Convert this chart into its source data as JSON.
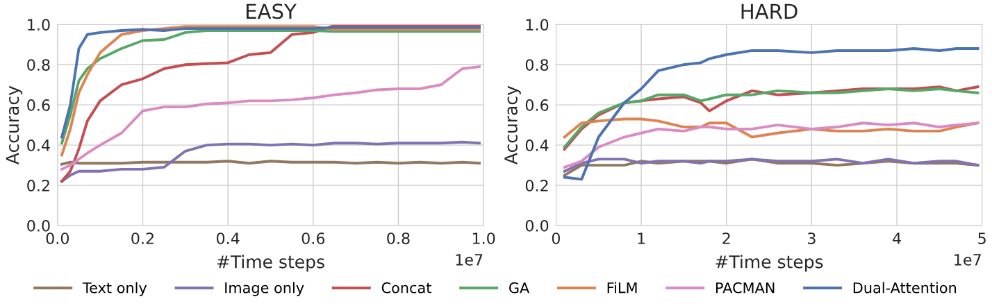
{
  "chart_data": [
    {
      "type": "line",
      "title": "EASY",
      "xlabel": "#Time steps",
      "ylabel": "Accuracy",
      "annotations": [
        "1e7"
      ],
      "grid": true,
      "legend": "bottom",
      "marker": "none",
      "line_style": "solid",
      "xlim": [
        0,
        1
      ],
      "ylim": [
        0,
        1
      ],
      "xticks": [
        {
          "value": 0,
          "label": "0.0"
        },
        {
          "value": 0.2,
          "label": "0.2"
        },
        {
          "value": 0.4,
          "label": "0.4"
        },
        {
          "value": 0.6,
          "label": "0.6"
        },
        {
          "value": 0.8,
          "label": "0.8"
        },
        {
          "value": 1,
          "label": "1.0"
        }
      ],
      "yticks": [
        {
          "value": 0,
          "label": "0.0"
        },
        {
          "value": 0.2,
          "label": "0.2"
        },
        {
          "value": 0.4,
          "label": "0.4"
        },
        {
          "value": 0.6,
          "label": "0.6"
        },
        {
          "value": 0.8,
          "label": "0.8"
        },
        {
          "value": 1,
          "label": "1.0"
        }
      ],
      "x": [
        0.01,
        0.03,
        0.05,
        0.07,
        0.1,
        0.15,
        0.2,
        0.25,
        0.3,
        0.35,
        0.4,
        0.45,
        0.5,
        0.55,
        0.6,
        0.65,
        0.7,
        0.75,
        0.8,
        0.85,
        0.9,
        0.95,
        0.99
      ],
      "series": [
        {
          "name": "Text only",
          "color": "#937860",
          "values": [
            0.305,
            0.315,
            0.31,
            0.31,
            0.31,
            0.31,
            0.315,
            0.315,
            0.315,
            0.315,
            0.32,
            0.31,
            0.32,
            0.315,
            0.315,
            0.315,
            0.31,
            0.315,
            0.31,
            0.315,
            0.31,
            0.315,
            0.31
          ]
        },
        {
          "name": "Image only",
          "color": "#8172b2",
          "values": [
            0.22,
            0.25,
            0.27,
            0.27,
            0.27,
            0.28,
            0.28,
            0.29,
            0.37,
            0.4,
            0.405,
            0.405,
            0.4,
            0.405,
            0.4,
            0.41,
            0.41,
            0.405,
            0.41,
            0.41,
            0.41,
            0.415,
            0.41
          ]
        },
        {
          "name": "Concat",
          "color": "#c44e52",
          "values": [
            0.22,
            0.27,
            0.38,
            0.52,
            0.62,
            0.7,
            0.73,
            0.78,
            0.8,
            0.805,
            0.81,
            0.85,
            0.86,
            0.95,
            0.96,
            0.995,
            0.995,
            0.995,
            0.995,
            0.995,
            0.995,
            0.995,
            0.995
          ]
        },
        {
          "name": "GA",
          "color": "#55a868",
          "values": [
            0.41,
            0.55,
            0.72,
            0.78,
            0.83,
            0.88,
            0.92,
            0.925,
            0.96,
            0.97,
            0.97,
            0.97,
            0.97,
            0.97,
            0.97,
            0.965,
            0.965,
            0.965,
            0.965,
            0.965,
            0.965,
            0.965,
            0.965
          ]
        },
        {
          "name": "FiLM",
          "color": "#dd8452",
          "values": [
            0.35,
            0.48,
            0.66,
            0.75,
            0.86,
            0.95,
            0.97,
            0.98,
            0.99,
            0.99,
            0.99,
            0.99,
            0.99,
            0.99,
            0.99,
            0.975,
            0.975,
            0.975,
            0.975,
            0.975,
            0.975,
            0.975,
            0.975
          ]
        },
        {
          "name": "PACMAN",
          "color": "#da8bc3",
          "values": [
            0.28,
            0.3,
            0.33,
            0.36,
            0.4,
            0.46,
            0.57,
            0.59,
            0.59,
            0.605,
            0.61,
            0.62,
            0.62,
            0.625,
            0.635,
            0.65,
            0.66,
            0.675,
            0.68,
            0.68,
            0.7,
            0.78,
            0.79
          ]
        },
        {
          "name": "Dual-Attention",
          "color": "#4c72b0",
          "values": [
            0.44,
            0.6,
            0.88,
            0.95,
            0.96,
            0.97,
            0.975,
            0.97,
            0.98,
            0.98,
            0.98,
            0.98,
            0.98,
            0.98,
            0.98,
            0.985,
            0.985,
            0.985,
            0.985,
            0.985,
            0.985,
            0.985,
            0.985
          ]
        }
      ]
    },
    {
      "type": "line",
      "title": "HARD",
      "xlabel": "#Time steps",
      "ylabel": "Accuracy",
      "annotations": [
        "1e7"
      ],
      "grid": true,
      "marker": "none",
      "line_style": "solid",
      "xlim": [
        0,
        5
      ],
      "ylim": [
        0,
        1
      ],
      "xticks": [
        0,
        1,
        2,
        3,
        4,
        5
      ],
      "yticks": [
        {
          "value": 0,
          "label": "0.0"
        },
        {
          "value": 0.2,
          "label": "0.2"
        },
        {
          "value": 0.4,
          "label": "0.4"
        },
        {
          "value": 0.6,
          "label": "0.6"
        },
        {
          "value": 0.8,
          "label": "0.8"
        },
        {
          "value": 1,
          "label": "1.0"
        }
      ],
      "x": [
        0.1,
        0.3,
        0.5,
        0.8,
        1.0,
        1.2,
        1.5,
        1.7,
        1.8,
        2.0,
        2.3,
        2.6,
        3.0,
        3.3,
        3.6,
        3.9,
        4.2,
        4.5,
        4.7,
        4.95
      ],
      "series": [
        {
          "color": "#937860",
          "values": [
            0.25,
            0.3,
            0.3,
            0.3,
            0.32,
            0.31,
            0.32,
            0.32,
            0.32,
            0.31,
            0.33,
            0.31,
            0.31,
            0.3,
            0.31,
            0.32,
            0.31,
            0.31,
            0.31,
            0.3
          ]
        },
        {
          "color": "#8172b2",
          "values": [
            0.27,
            0.31,
            0.33,
            0.33,
            0.31,
            0.32,
            0.32,
            0.31,
            0.32,
            0.32,
            0.33,
            0.32,
            0.32,
            0.33,
            0.31,
            0.33,
            0.31,
            0.32,
            0.32,
            0.3
          ]
        },
        {
          "color": "#c44e52",
          "values": [
            0.38,
            0.48,
            0.55,
            0.61,
            0.62,
            0.63,
            0.64,
            0.61,
            0.57,
            0.62,
            0.67,
            0.65,
            0.66,
            0.67,
            0.68,
            0.68,
            0.68,
            0.69,
            0.67,
            0.69
          ]
        },
        {
          "color": "#55a868",
          "values": [
            0.39,
            0.49,
            0.56,
            0.61,
            0.62,
            0.65,
            0.65,
            0.62,
            0.63,
            0.65,
            0.65,
            0.67,
            0.66,
            0.66,
            0.67,
            0.68,
            0.67,
            0.68,
            0.67,
            0.66
          ]
        },
        {
          "color": "#dd8452",
          "values": [
            0.44,
            0.51,
            0.52,
            0.53,
            0.53,
            0.52,
            0.49,
            0.49,
            0.51,
            0.51,
            0.44,
            0.46,
            0.48,
            0.47,
            0.47,
            0.48,
            0.47,
            0.47,
            0.49,
            0.51
          ]
        },
        {
          "color": "#da8bc3",
          "values": [
            0.29,
            0.32,
            0.39,
            0.44,
            0.46,
            0.48,
            0.47,
            0.49,
            0.49,
            0.48,
            0.48,
            0.5,
            0.48,
            0.49,
            0.51,
            0.5,
            0.51,
            0.49,
            0.5,
            0.51
          ]
        },
        {
          "color": "#4c72b0",
          "values": [
            0.24,
            0.23,
            0.44,
            0.61,
            0.68,
            0.77,
            0.8,
            0.81,
            0.83,
            0.85,
            0.87,
            0.87,
            0.86,
            0.87,
            0.87,
            0.87,
            0.88,
            0.87,
            0.88,
            0.88
          ]
        }
      ]
    }
  ]
}
